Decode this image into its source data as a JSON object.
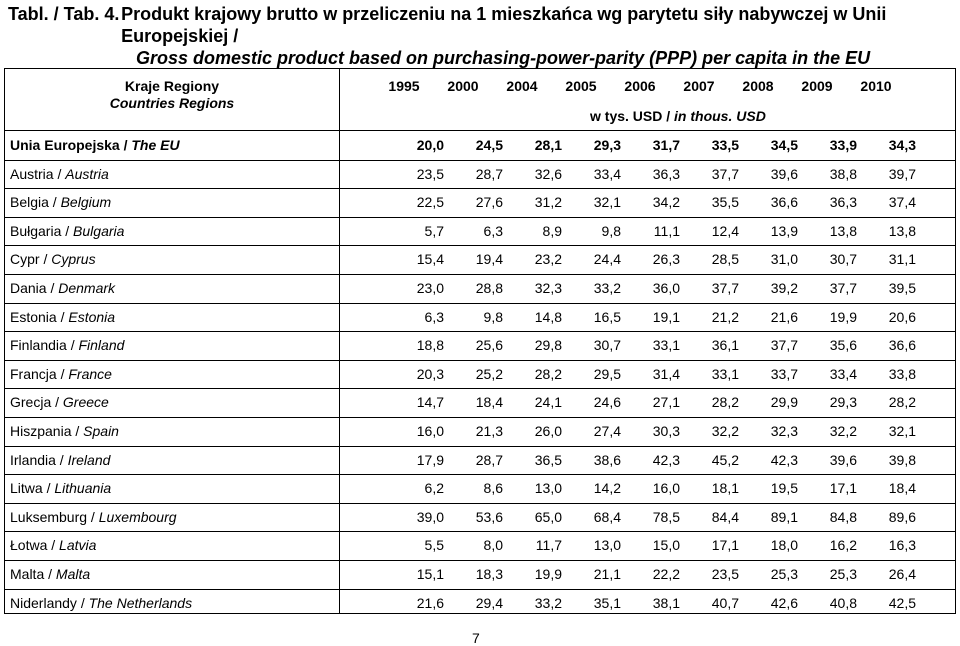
{
  "title": {
    "tabl": "Tabl. / Tab. 4.",
    "pl": "Produkt krajowy brutto w przeliczeniu na 1 mieszkańca wg parytetu siły nabywczej w Unii Europejskiej /",
    "en": "Gross domestic product based on purchasing-power-parity (PPP) per capita in the EU"
  },
  "header": {
    "region_pl": "Kraje   Regiony",
    "region_en": "Countries   Regions",
    "years": [
      "1995",
      "2000",
      "2004",
      "2005",
      "2006",
      "2007",
      "2008",
      "2009",
      "2010"
    ],
    "unit_pl": "w tys. USD /",
    "unit_en": "in thous. USD"
  },
  "rows": [
    {
      "pl": "Unia Europejska /",
      "en": "The EU",
      "bold": true,
      "values": [
        "20,0",
        "24,5",
        "28,1",
        "29,3",
        "31,7",
        "33,5",
        "34,5",
        "33,9",
        "34,3"
      ]
    },
    {
      "pl": "Austria /",
      "en": "Austria",
      "values": [
        "23,5",
        "28,7",
        "32,6",
        "33,4",
        "36,3",
        "37,7",
        "39,6",
        "38,8",
        "39,7"
      ]
    },
    {
      "pl": "Belgia /",
      "en": "Belgium",
      "values": [
        "22,5",
        "27,6",
        "31,2",
        "32,1",
        "34,2",
        "35,5",
        "36,6",
        "36,3",
        "37,4"
      ]
    },
    {
      "pl": "Bułgaria /",
      "en": "Bulgaria",
      "values": [
        "5,7",
        "6,3",
        "8,9",
        "9,8",
        "11,1",
        "12,4",
        "13,9",
        "13,8",
        "13,8"
      ]
    },
    {
      "pl": "Cypr /",
      "en": "Cyprus",
      "values": [
        "15,4",
        "19,4",
        "23,2",
        "24,4",
        "26,3",
        "28,5",
        "31,0",
        "30,7",
        "31,1"
      ]
    },
    {
      "pl": "Dania /",
      "en": "Denmark",
      "values": [
        "23,0",
        "28,8",
        "32,3",
        "33,2",
        "36,0",
        "37,7",
        "39,2",
        "37,7",
        "39,5"
      ]
    },
    {
      "pl": "Estonia /",
      "en": "Estonia",
      "values": [
        "6,3",
        "9,8",
        "14,8",
        "16,5",
        "19,1",
        "21,2",
        "21,6",
        "19,9",
        "20,6"
      ]
    },
    {
      "pl": "Finlandia /",
      "en": "Finland",
      "values": [
        "18,8",
        "25,6",
        "29,8",
        "30,7",
        "33,1",
        "36,1",
        "37,7",
        "35,6",
        "36,6"
      ]
    },
    {
      "pl": "Francja /",
      "en": "France",
      "values": [
        "20,3",
        "25,2",
        "28,2",
        "29,5",
        "31,4",
        "33,1",
        "33,7",
        "33,4",
        "33,8"
      ]
    },
    {
      "pl": "Grecja /",
      "en": "Greece",
      "values": [
        "14,7",
        "18,4",
        "24,1",
        "24,6",
        "27,1",
        "28,2",
        "29,9",
        "29,3",
        "28,2"
      ]
    },
    {
      "pl": "Hiszpania /",
      "en": "Spain",
      "values": [
        "16,0",
        "21,3",
        "26,0",
        "27,4",
        "30,3",
        "32,2",
        "32,3",
        "32,2",
        "32,1"
      ]
    },
    {
      "pl": "Irlandia /",
      "en": "Ireland",
      "values": [
        "17,9",
        "28,7",
        "36,5",
        "38,6",
        "42,3",
        "45,2",
        "42,3",
        "39,6",
        "39,8"
      ]
    },
    {
      "pl": "Litwa /",
      "en": "Lithuania",
      "values": [
        "6,2",
        "8,6",
        "13,0",
        "14,2",
        "16,0",
        "18,1",
        "19,5",
        "17,1",
        "18,4"
      ]
    },
    {
      "pl": "Luksemburg /",
      "en": "Luxembourg",
      "values": [
        "39,0",
        "53,6",
        "65,0",
        "68,4",
        "78,5",
        "84,4",
        "89,1",
        "84,8",
        "89,6"
      ]
    },
    {
      "pl": "Łotwa /",
      "en": "Latvia",
      "values": [
        "5,5",
        "8,0",
        "11,7",
        "13,0",
        "15,0",
        "17,1",
        "18,0",
        "16,2",
        "16,3"
      ]
    },
    {
      "pl": "Malta /",
      "en": "Malta",
      "values": [
        "15,1",
        "18,3",
        "19,9",
        "21,1",
        "22,2",
        "23,5",
        "25,3",
        "25,3",
        "26,4"
      ]
    },
    {
      "pl": "Niderlandy /",
      "en": "The Netherlands",
      "values": [
        "21,6",
        "29,4",
        "33,2",
        "35,1",
        "38,1",
        "40,7",
        "42,6",
        "40,8",
        "42,5"
      ]
    }
  ],
  "page_number": "7"
}
